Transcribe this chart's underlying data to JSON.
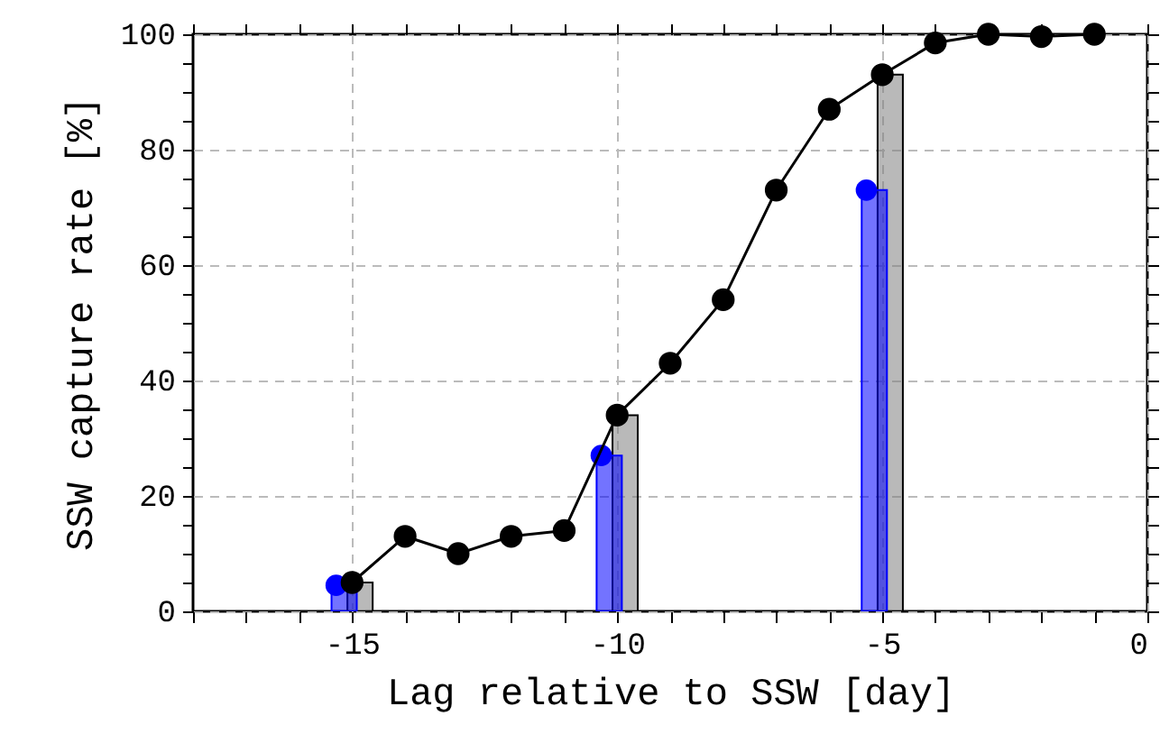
{
  "chart_data": {
    "type": "line",
    "xlabel": "Lag relative to SSW [day]",
    "ylabel": "SSW capture rate [%]",
    "xlim": [
      -18,
      0
    ],
    "ylim": [
      0,
      100
    ],
    "xticks": [
      {
        "value": -18,
        "label": null
      },
      {
        "value": -17,
        "label": null
      },
      {
        "value": -16,
        "label": null
      },
      -15,
      {
        "value": -14,
        "label": null
      },
      {
        "value": -13,
        "label": null
      },
      {
        "value": -12,
        "label": null
      },
      {
        "value": -11,
        "label": null
      },
      -10,
      {
        "value": -9,
        "label": null
      },
      {
        "value": -8,
        "label": null
      },
      {
        "value": -7,
        "label": null
      },
      {
        "value": -6,
        "label": null
      },
      -5,
      {
        "value": -4,
        "label": null
      },
      {
        "value": -3,
        "label": null
      },
      {
        "value": -2,
        "label": null
      },
      {
        "value": -1,
        "label": null
      },
      0
    ],
    "yticks": [
      0,
      {
        "value": 5,
        "label": null
      },
      {
        "value": 10,
        "label": null
      },
      {
        "value": 15,
        "label": null
      },
      20,
      {
        "value": 25,
        "label": null
      },
      {
        "value": 30,
        "label": null
      },
      {
        "value": 35,
        "label": null
      },
      40,
      {
        "value": 45,
        "label": null
      },
      {
        "value": 50,
        "label": null
      },
      {
        "value": 55,
        "label": null
      },
      60,
      {
        "value": 65,
        "label": null
      },
      {
        "value": 70,
        "label": null
      },
      {
        "value": 75,
        "label": null
      },
      80,
      {
        "value": 85,
        "label": null
      },
      {
        "value": 90,
        "label": null
      },
      {
        "value": 95,
        "label": null
      },
      100
    ],
    "grid": true,
    "marker": "circle",
    "line_style": "solid",
    "series": [
      {
        "type": "bar",
        "color": "#808080",
        "x": [
          -14.85,
          -9.85,
          -4.85
        ],
        "values": [
          5,
          34,
          93
        ]
      },
      {
        "type": "bar",
        "color": "#0000ff",
        "x": [
          -15.15,
          -10.15,
          -5.15
        ],
        "values": [
          4.5,
          27,
          73
        ]
      },
      {
        "type": "scatter",
        "color": "#0000ff",
        "x": [
          -15.3,
          -10.3,
          -5.3
        ],
        "values": [
          4.5,
          27,
          73
        ]
      },
      {
        "color": "#000000",
        "x": [
          -15,
          -14,
          -13,
          -12,
          -11,
          -10,
          -9,
          -8,
          -7,
          -6,
          -5,
          -4,
          -3,
          -2,
          -1
        ],
        "values": [
          5,
          13,
          10,
          13,
          14,
          34,
          43,
          54,
          73,
          87,
          93,
          98.5,
          100,
          99.6,
          100
        ]
      }
    ]
  }
}
